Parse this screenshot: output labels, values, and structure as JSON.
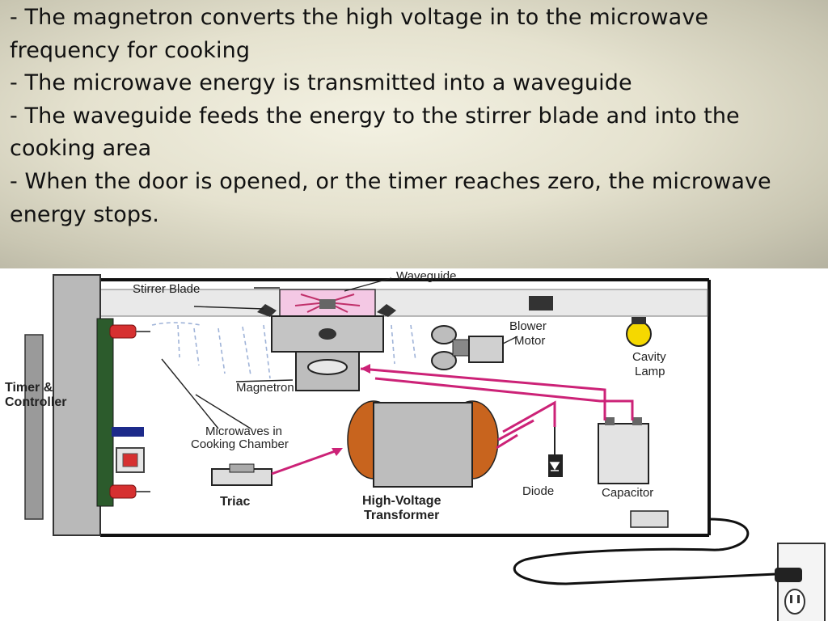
{
  "bullets": [
    "- The magnetron converts the high voltage in to the microwave frequency for cooking",
    "- The microwave energy is transmitted into a waveguide",
    "- The waveguide feeds the energy to the stirrer blade and into the cooking area",
    "- When the door is opened, or the timer reaches zero, the microwave energy stops."
  ],
  "diagram": {
    "labels": {
      "waveguide": "Waveguide",
      "stirrer_blade": "Stirrer Blade",
      "blower_line1": "Blower",
      "blower_line2": "Motor",
      "cavity_line1": "Cavity",
      "cavity_line2": "Lamp",
      "timer_line1": "Timer &",
      "timer_line2": "Controller",
      "magnetron": "Magnetron",
      "microwaves_line1": "Microwaves in",
      "microwaves_line2": "Cooking Chamber",
      "triac": "Triac",
      "hv_line1": "High-Voltage",
      "hv_line2": "Transformer",
      "diode": "Diode",
      "capacitor": "Capacitor"
    },
    "colors": {
      "wire": "#cc2277",
      "coil": "#c8641e",
      "lamp": "#f5d800",
      "relay": "#d63030"
    }
  }
}
